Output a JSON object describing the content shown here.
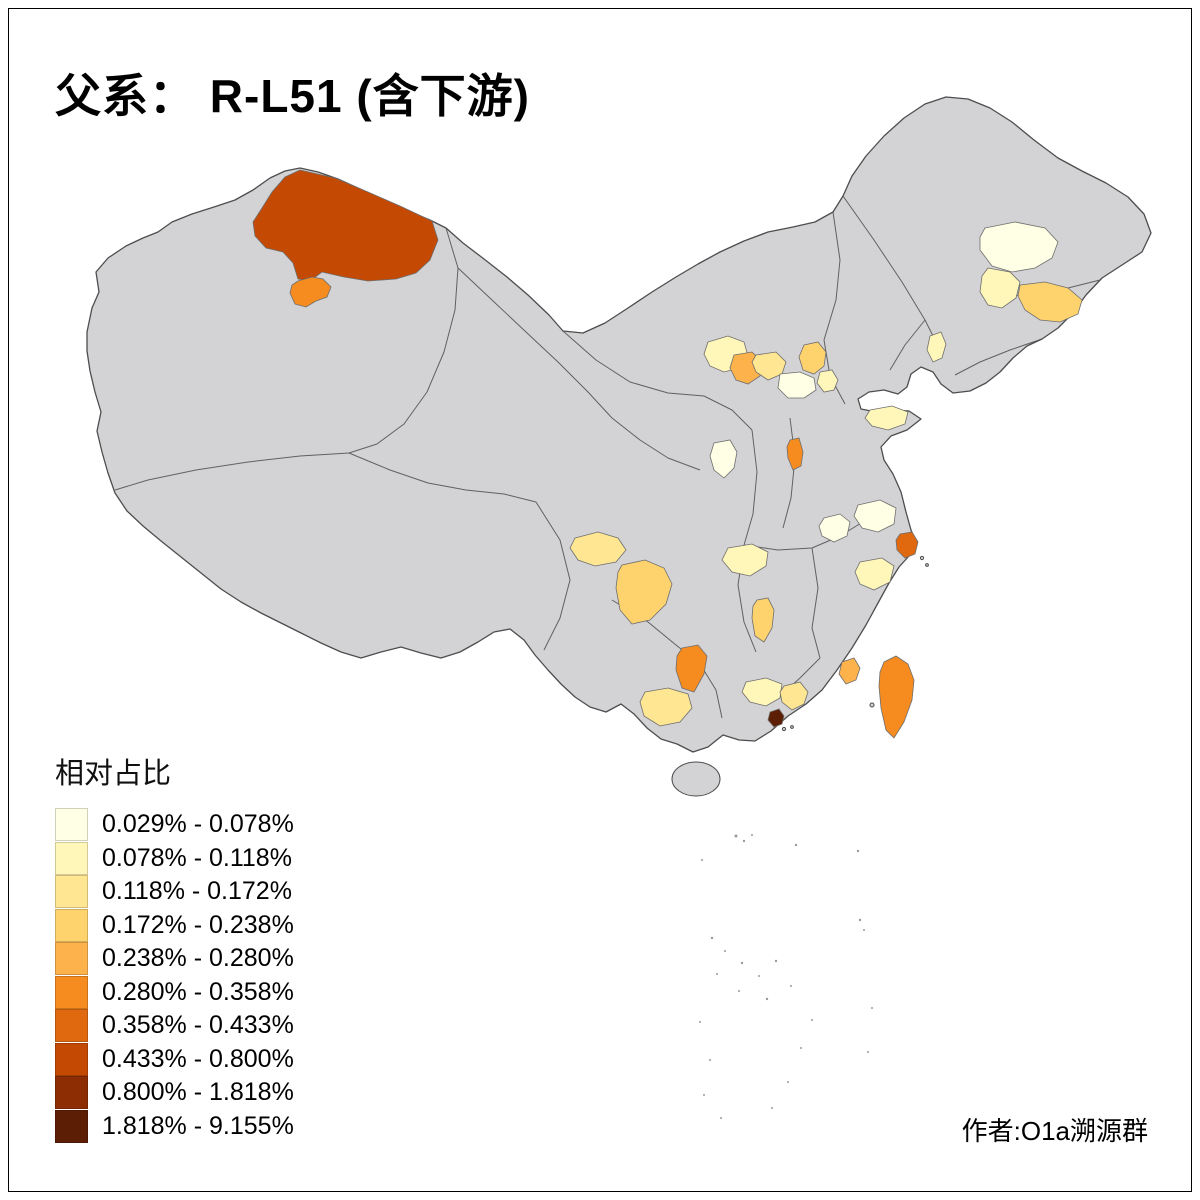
{
  "title": "父系： R-L51 (含下游)",
  "credit": "作者:O1a溯源群",
  "legend": {
    "title": "相对占比",
    "classes": [
      {
        "label": "0.029% - 0.078%",
        "color": "#FFFFE5"
      },
      {
        "label": "0.078% - 0.118%",
        "color": "#FFF6BA"
      },
      {
        "label": "0.118% - 0.172%",
        "color": "#FEE692"
      },
      {
        "label": "0.172% - 0.238%",
        "color": "#FED36E"
      },
      {
        "label": "0.238% - 0.280%",
        "color": "#FDB24C"
      },
      {
        "label": "0.280% - 0.358%",
        "color": "#F68C20"
      },
      {
        "label": "0.358% - 0.433%",
        "color": "#E06910"
      },
      {
        "label": "0.433% - 0.800%",
        "color": "#C44903"
      },
      {
        "label": "0.800% - 1.818%",
        "color": "#8C2D04"
      },
      {
        "label": "1.818% - 9.155%",
        "color": "#5C1F05"
      }
    ]
  },
  "map": {
    "land_color": "#D3D3D5",
    "border_color": "#4D4D4D",
    "region_border_color": "#6E6E6E",
    "regions": [
      {
        "id": "highlight-1",
        "class_index": 7,
        "points": [
          [
            300,
            170
          ],
          [
            335,
            178
          ],
          [
            368,
            192
          ],
          [
            400,
            206
          ],
          [
            432,
            221
          ],
          [
            438,
            240
          ],
          [
            430,
            260
          ],
          [
            416,
            273
          ],
          [
            396,
            279
          ],
          [
            368,
            281
          ],
          [
            344,
            277
          ],
          [
            322,
            272
          ],
          [
            310,
            281
          ],
          [
            298,
            279
          ],
          [
            293,
            263
          ],
          [
            283,
            252
          ],
          [
            266,
            248
          ],
          [
            255,
            236
          ],
          [
            253,
            222
          ],
          [
            262,
            208
          ],
          [
            272,
            192
          ],
          [
            285,
            177
          ]
        ]
      },
      {
        "id": "highlight-2",
        "class_index": 5,
        "points": [
          [
            298,
            281
          ],
          [
            312,
            277
          ],
          [
            323,
            279
          ],
          [
            331,
            287
          ],
          [
            327,
            297
          ],
          [
            316,
            301
          ],
          [
            306,
            307
          ],
          [
            295,
            304
          ],
          [
            290,
            293
          ],
          [
            292,
            285
          ]
        ]
      },
      {
        "id": "highlight-3",
        "class_index": 0,
        "points": [
          [
            985,
            228
          ],
          [
            1015,
            222
          ],
          [
            1045,
            228
          ],
          [
            1058,
            242
          ],
          [
            1052,
            258
          ],
          [
            1035,
            268
          ],
          [
            1012,
            272
          ],
          [
            992,
            266
          ],
          [
            980,
            250
          ],
          [
            980,
            237
          ]
        ]
      },
      {
        "id": "highlight-4",
        "class_index": 1,
        "points": [
          [
            988,
            268
          ],
          [
            1010,
            272
          ],
          [
            1020,
            282
          ],
          [
            1016,
            298
          ],
          [
            1002,
            308
          ],
          [
            988,
            305
          ],
          [
            980,
            292
          ],
          [
            982,
            276
          ]
        ]
      },
      {
        "id": "highlight-5",
        "class_index": 3,
        "points": [
          [
            1020,
            285
          ],
          [
            1045,
            282
          ],
          [
            1068,
            288
          ],
          [
            1082,
            300
          ],
          [
            1078,
            314
          ],
          [
            1060,
            322
          ],
          [
            1040,
            320
          ],
          [
            1025,
            310
          ],
          [
            1018,
            296
          ]
        ]
      },
      {
        "id": "highlight-6",
        "class_index": 1,
        "points": [
          [
            708,
            342
          ],
          [
            728,
            336
          ],
          [
            744,
            342
          ],
          [
            748,
            356
          ],
          [
            740,
            368
          ],
          [
            724,
            372
          ],
          [
            710,
            366
          ],
          [
            704,
            354
          ]
        ]
      },
      {
        "id": "highlight-7",
        "class_index": 4,
        "points": [
          [
            734,
            355
          ],
          [
            752,
            352
          ],
          [
            762,
            362
          ],
          [
            760,
            376
          ],
          [
            748,
            384
          ],
          [
            736,
            380
          ],
          [
            730,
            368
          ]
        ]
      },
      {
        "id": "highlight-8",
        "class_index": 2,
        "points": [
          [
            756,
            355
          ],
          [
            776,
            352
          ],
          [
            786,
            362
          ],
          [
            782,
            374
          ],
          [
            768,
            380
          ],
          [
            756,
            372
          ],
          [
            752,
            362
          ]
        ]
      },
      {
        "id": "highlight-9",
        "class_index": 3,
        "points": [
          [
            804,
            345
          ],
          [
            818,
            342
          ],
          [
            826,
            352
          ],
          [
            824,
            366
          ],
          [
            814,
            374
          ],
          [
            803,
            370
          ],
          [
            799,
            357
          ]
        ]
      },
      {
        "id": "highlight-10",
        "class_index": 0,
        "points": [
          [
            780,
            374
          ],
          [
            800,
            372
          ],
          [
            814,
            378
          ],
          [
            816,
            390
          ],
          [
            804,
            398
          ],
          [
            788,
            398
          ],
          [
            778,
            388
          ]
        ]
      },
      {
        "id": "highlight-11",
        "class_index": 1,
        "points": [
          [
            820,
            372
          ],
          [
            832,
            370
          ],
          [
            838,
            380
          ],
          [
            834,
            390
          ],
          [
            824,
            392
          ],
          [
            817,
            383
          ]
        ]
      },
      {
        "id": "highlight-12",
        "class_index": 5,
        "points": [
          [
            790,
            440
          ],
          [
            799,
            438
          ],
          [
            803,
            452
          ],
          [
            801,
            466
          ],
          [
            793,
            470
          ],
          [
            788,
            458
          ],
          [
            787,
            447
          ]
        ]
      },
      {
        "id": "highlight-13",
        "class_index": 0,
        "points": [
          [
            714,
            443
          ],
          [
            730,
            440
          ],
          [
            737,
            452
          ],
          [
            734,
            468
          ],
          [
            724,
            478
          ],
          [
            714,
            470
          ],
          [
            710,
            456
          ]
        ]
      },
      {
        "id": "highlight-14",
        "class_index": 1,
        "points": [
          [
            870,
            410
          ],
          [
            892,
            406
          ],
          [
            908,
            412
          ],
          [
            905,
            424
          ],
          [
            888,
            430
          ],
          [
            872,
            426
          ],
          [
            865,
            418
          ]
        ]
      },
      {
        "id": "highlight-15",
        "class_index": 0,
        "points": [
          [
            858,
            505
          ],
          [
            880,
            500
          ],
          [
            896,
            508
          ],
          [
            894,
            524
          ],
          [
            878,
            532
          ],
          [
            862,
            528
          ],
          [
            854,
            516
          ]
        ]
      },
      {
        "id": "highlight-16",
        "class_index": 6,
        "points": [
          [
            900,
            534
          ],
          [
            912,
            532
          ],
          [
            918,
            542
          ],
          [
            915,
            554
          ],
          [
            905,
            558
          ],
          [
            897,
            550
          ],
          [
            896,
            540
          ]
        ]
      },
      {
        "id": "highlight-17",
        "class_index": 1,
        "points": [
          [
            860,
            562
          ],
          [
            882,
            558
          ],
          [
            894,
            566
          ],
          [
            890,
            582
          ],
          [
            874,
            590
          ],
          [
            860,
            584
          ],
          [
            855,
            572
          ]
        ]
      },
      {
        "id": "highlight-18",
        "class_index": 0,
        "points": [
          [
            824,
            518
          ],
          [
            840,
            514
          ],
          [
            850,
            522
          ],
          [
            847,
            536
          ],
          [
            834,
            542
          ],
          [
            822,
            536
          ],
          [
            819,
            526
          ]
        ]
      },
      {
        "id": "highlight-19",
        "class_index": 2,
        "points": [
          [
            575,
            538
          ],
          [
            598,
            532
          ],
          [
            618,
            538
          ],
          [
            626,
            550
          ],
          [
            616,
            562
          ],
          [
            595,
            566
          ],
          [
            578,
            560
          ],
          [
            570,
            548
          ]
        ]
      },
      {
        "id": "highlight-20",
        "class_index": 3,
        "points": [
          [
            622,
            565
          ],
          [
            645,
            560
          ],
          [
            664,
            568
          ],
          [
            672,
            584
          ],
          [
            666,
            604
          ],
          [
            650,
            620
          ],
          [
            632,
            624
          ],
          [
            620,
            610
          ],
          [
            616,
            588
          ],
          [
            618,
            572
          ]
        ]
      },
      {
        "id": "highlight-21",
        "class_index": 1,
        "points": [
          [
            728,
            548
          ],
          [
            752,
            544
          ],
          [
            768,
            552
          ],
          [
            766,
            566
          ],
          [
            750,
            576
          ],
          [
            732,
            572
          ],
          [
            722,
            560
          ]
        ]
      },
      {
        "id": "highlight-22",
        "class_index": 3,
        "points": [
          [
            757,
            600
          ],
          [
            768,
            598
          ],
          [
            774,
            610
          ],
          [
            772,
            628
          ],
          [
            764,
            642
          ],
          [
            755,
            636
          ],
          [
            752,
            618
          ],
          [
            753,
            606
          ]
        ]
      },
      {
        "id": "highlight-23",
        "class_index": 5,
        "points": [
          [
            682,
            648
          ],
          [
            698,
            645
          ],
          [
            707,
            656
          ],
          [
            704,
            674
          ],
          [
            694,
            692
          ],
          [
            682,
            688
          ],
          [
            676,
            670
          ],
          [
            677,
            656
          ]
        ]
      },
      {
        "id": "highlight-24",
        "class_index": 2,
        "points": [
          [
            645,
            692
          ],
          [
            668,
            688
          ],
          [
            688,
            694
          ],
          [
            692,
            708
          ],
          [
            680,
            722
          ],
          [
            660,
            726
          ],
          [
            644,
            716
          ],
          [
            640,
            702
          ]
        ]
      },
      {
        "id": "highlight-25",
        "class_index": 1,
        "points": [
          [
            746,
            682
          ],
          [
            766,
            678
          ],
          [
            782,
            684
          ],
          [
            780,
            698
          ],
          [
            766,
            706
          ],
          [
            750,
            702
          ],
          [
            742,
            692
          ]
        ]
      },
      {
        "id": "highlight-26",
        "class_index": 2,
        "points": [
          [
            784,
            686
          ],
          [
            800,
            682
          ],
          [
            808,
            692
          ],
          [
            804,
            704
          ],
          [
            792,
            710
          ],
          [
            782,
            702
          ],
          [
            780,
            692
          ]
        ]
      },
      {
        "id": "highlight-27",
        "class_index": 9,
        "points": [
          [
            770,
            712
          ],
          [
            779,
            709
          ],
          [
            784,
            716
          ],
          [
            782,
            724
          ],
          [
            774,
            727
          ],
          [
            768,
            720
          ]
        ]
      },
      {
        "id": "highlight-28",
        "class_index": 4,
        "points": [
          [
            842,
            662
          ],
          [
            854,
            658
          ],
          [
            860,
            668
          ],
          [
            856,
            680
          ],
          [
            846,
            684
          ],
          [
            839,
            674
          ]
        ]
      },
      {
        "id": "highlight-29",
        "class_index": 5,
        "points": [
          [
            884,
            662
          ],
          [
            896,
            656
          ],
          [
            908,
            664
          ],
          [
            914,
            680
          ],
          [
            912,
            700
          ],
          [
            904,
            722
          ],
          [
            894,
            738
          ],
          [
            886,
            730
          ],
          [
            881,
            708
          ],
          [
            879,
            686
          ],
          [
            880,
            672
          ]
        ]
      },
      {
        "id": "highlight-30",
        "class_index": 1,
        "points": [
          [
            930,
            336
          ],
          [
            941,
            332
          ],
          [
            946,
            344
          ],
          [
            942,
            358
          ],
          [
            933,
            362
          ],
          [
            927,
            350
          ]
        ]
      }
    ]
  }
}
